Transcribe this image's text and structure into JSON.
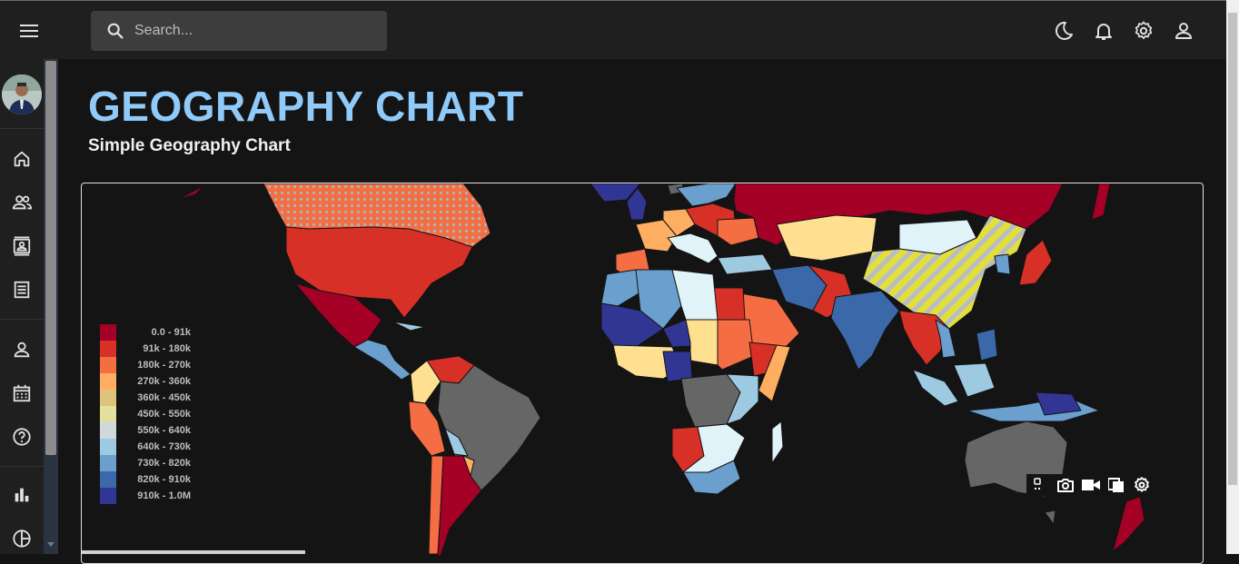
{
  "topbar": {
    "search_placeholder": "Search...",
    "icons": [
      "menu-icon",
      "search-icon",
      "moon-icon",
      "bell-icon",
      "gear-icon",
      "user-icon"
    ]
  },
  "sidebar": {
    "icons": [
      "home-icon",
      "people-icon",
      "contacts-icon",
      "receipt-icon",
      "person-icon",
      "calendar-icon",
      "help-icon",
      "bar-chart-icon",
      "pie-chart-icon"
    ]
  },
  "header": {
    "title": "GEOGRAPHY CHART",
    "subtitle": "Simple Geography Chart"
  },
  "chart_data": {
    "type": "choropleth-map",
    "legend_position": "left",
    "legend": [
      {
        "label": "0.0 - 91k",
        "color": "#a50026"
      },
      {
        "label": "91k - 180k",
        "color": "#d73027"
      },
      {
        "label": "180k - 270k",
        "color": "#f46d43"
      },
      {
        "label": "270k - 360k",
        "color": "#fdae61"
      },
      {
        "label": "360k - 450k",
        "color": "#e0c37a"
      },
      {
        "label": "450k - 550k",
        "color": "#e3df9f"
      },
      {
        "label": "550k - 640k",
        "color": "#cfd8dc"
      },
      {
        "label": "640k - 730k",
        "color": "#9ecae1"
      },
      {
        "label": "730k - 820k",
        "color": "#6a9fce"
      },
      {
        "label": "820k - 910k",
        "color": "#3a68a8"
      },
      {
        "label": "910k - 1.0M",
        "color": "#313695"
      }
    ],
    "no_data_color": "#666666",
    "regions": [
      {
        "name": "Canada",
        "color": "#f46d43",
        "pattern": "dots"
      },
      {
        "name": "United States",
        "color": "#d73027"
      },
      {
        "name": "Mexico",
        "color": "#a50026"
      },
      {
        "name": "Brazil",
        "color": "#666666"
      },
      {
        "name": "Argentina",
        "color": "#a50026"
      },
      {
        "name": "Russia",
        "color": "#a50026"
      },
      {
        "name": "China",
        "color": "#e3df3a",
        "pattern": "stripes"
      },
      {
        "name": "India",
        "color": "#3a68a8"
      },
      {
        "name": "Australia",
        "color": "#666666"
      },
      {
        "name": "Kazakhstan",
        "color": "#fee090"
      },
      {
        "name": "Mongolia",
        "color": "#e0f3f8"
      },
      {
        "name": "Algeria",
        "color": "#6a9fce"
      },
      {
        "name": "Libya",
        "color": "#e0f3f8"
      },
      {
        "name": "Niger",
        "color": "#313695"
      },
      {
        "name": "Chad",
        "color": "#fee090"
      },
      {
        "name": "Sudan",
        "color": "#f46d43"
      },
      {
        "name": "DR Congo",
        "color": "#666666"
      },
      {
        "name": "Madagascar",
        "color": "#e0f3f8"
      }
    ]
  },
  "modebar": {
    "icons": [
      "plotly-logo-icon",
      "camera-icon",
      "video-icon",
      "copy-icon",
      "settings-icon"
    ]
  }
}
